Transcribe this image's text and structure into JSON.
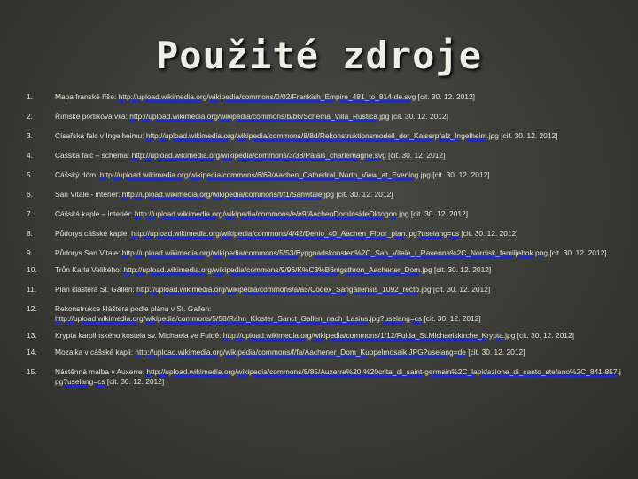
{
  "slide": {
    "title": "Použité zdroje"
  },
  "references": [
    {
      "number": "1.",
      "label": "Mapa franské říše: ",
      "url": "http://upload.wikimedia.org/wikipedia/commons/0/02/Frankish_Empire_481_to_814-de.svg",
      "cite": " [cit. 30. 12. 2012]"
    },
    {
      "number": "2.",
      "label": "Římské portiková vila: ",
      "url": "http://upload.wikimedia.org/wikipedia/commons/b/b6/Schema_Villa_Rustica.jpg",
      "cite": " [cit. 30. 12. 2012]"
    },
    {
      "number": "3.",
      "label": "Císařská falc v Ingelheimu: ",
      "url": "http://upload.wikimedia.org/wikipedia/commons/8/8d/Rekonstruktionsmodell_der_Kaiserpfalz_Ingelheim.jpg",
      "cite": " [cit. 30. 12. 2012]"
    },
    {
      "number": "4.",
      "label": "Cášská falc – schéma: ",
      "url": "http://upload.wikimedia.org/wikipedia/commons/3/38/Palais_charlemagne.svg",
      "cite": " [cit. 30. 12. 2012]"
    },
    {
      "number": "5.",
      "label": "Cášský dóm: ",
      "url": "http://upload.wikimedia.org/wikipedia/commons/6/69/Aachen_Cathedral_North_View_at_Evening.jpg",
      "cite": " [cit. 30. 12. 2012]"
    },
    {
      "number": "6.",
      "label": "San Vitale - interiér: ",
      "url": "http://upload.wikimedia.org/wikipedia/commons/f/f1/Sanvitale.jpg",
      "cite": " [cit. 30. 12. 2012]"
    },
    {
      "number": "7.",
      "label": "Cášská kaple – interiér: ",
      "url": "http://upload.wikimedia.org/wikipedia/commons/e/e9/AachenDomInsideOktogon.jpg",
      "cite": " [cit. 30. 12. 2012]"
    },
    {
      "number": "8.",
      "label": "Půdorys cášské kaple: ",
      "url": "http://upload.wikimedia.org/wikipedia/commons/4/42/Dehio_40_Aachen_Floor_plan.jpg?uselang=cs",
      "cite": " [cit. 30. 12. 2012]"
    },
    {
      "number": "9.",
      "label": "Půdorys San Vitale: ",
      "url": "http://upload.wikimedia.org/wikipedia/commons/5/53/Byggnadskonsten%2C_San_Vitale_i_Ravenna%2C_Nordisk_familjebok.png",
      "cite": " [cit. 30. 12. 2012]"
    },
    {
      "number": "10.",
      "label": "Trůn Karla Velikého: ",
      "url": "http://upload.wikimedia.org/wikipedia/commons/9/96/K%C3%B6nigsthron_Aachener_Dom.jpg",
      "cite": " [cit. 30. 12. 2012]"
    },
    {
      "number": "11.",
      "label": "Plán kláštera St. Gallen: ",
      "url": "http://upload.wikimedia.org/wikipedia/commons/a/a5/Codex_Sangallensis_1092_recto.jpg",
      "cite": " [cit. 30. 12. 2012]"
    },
    {
      "number": "12.",
      "label": "Rekonstrukce kláštera podle plánu v St. Gallen: ",
      "url": "http://upload.wikimedia.org/wikipedia/commons/5/58/Rahn_Kloster_Sanct_Gallen_nach_Lasius.jpg?uselang=cs",
      "cite": " [cit. 30. 12. 2012]"
    },
    {
      "number": "13.",
      "label": "Krypta karolinského kostela sv. Michaela ve Fuldě: ",
      "url": "http://upload.wikimedia.org/wikipedia/commons/1/12/Fulda_St.Michaelskirche_Krypta.jpg",
      "cite": " [cit. 30. 12. 2012]"
    },
    {
      "number": "14.",
      "label": "Mozaika v cášské kapli: ",
      "url": "http://upload.wikimedia.org/wikipedia/commons/f/fa/Aachener_Dom_Kuppelmosaik.JPG?uselang=de",
      "cite": " [cit. 30. 12. 2012]"
    },
    {
      "number": "15.",
      "label": "Nástěnná malba v Auxerre: ",
      "url": "http://upload.wikimedia.org/wikipedia/commons/8/85/Auxerre%20-%20crita_di_saint-germain%2C_lapidazione_di_santo_stefano%2C_841-857.jpg?uselang=cs",
      "cite": " [cit. 30. 12. 2012]"
    }
  ]
}
